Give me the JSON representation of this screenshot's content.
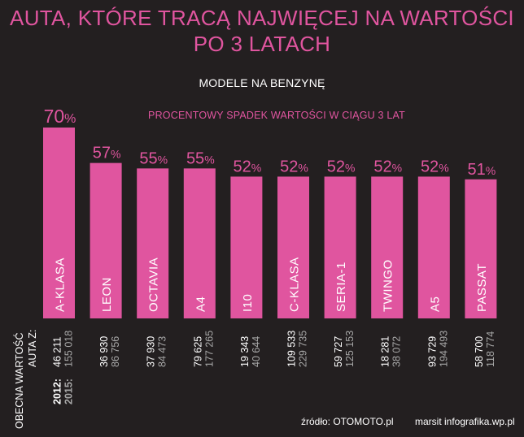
{
  "header": {
    "title_line1": "AUTA, KTÓRE TRACĄ NAJWIĘCEJ NA WARTOŚCI",
    "title_line2": "PO 3 LATACH",
    "subtitle": "MODELE NA BENZYNĘ"
  },
  "chart_data": {
    "type": "bar",
    "title": "PROCENTOWY SPADEK WARTOŚCI W CIĄGU 3 LAT",
    "categories": [
      "A-KLASA",
      "LEON",
      "OCTAVIA",
      "A4",
      "I10",
      "C-KLASA",
      "SERIA-1",
      "TWINGO",
      "A5",
      "PASSAT"
    ],
    "values": [
      70,
      57,
      55,
      55,
      52,
      52,
      52,
      52,
      52,
      51
    ],
    "value_suffix": "%",
    "ylim": [
      0,
      70
    ],
    "grid": false,
    "bar_color": "#e0559f",
    "value_2012": [
      "46 211",
      "36 930",
      "37 930",
      "79 625",
      "19 343",
      "109 533",
      "59 727",
      "18 281",
      "93 729",
      "58 700"
    ],
    "value_2015": [
      "155 018",
      "86 756",
      "84 473",
      "177 265",
      "40 644",
      "229 735",
      "125 153",
      "38 072",
      "194 493",
      "118 774"
    ],
    "axis_label_line1": "OBECNA WARTOŚĆ",
    "axis_label_line2": "AUTA Z:",
    "year_2012_label": "2012:",
    "year_2015_label": "2015:"
  },
  "footer": {
    "source": "źródło: OTOMOTO.pl",
    "author": "marsit infografika.wp.pl"
  },
  "colors": {
    "background": "#231f20",
    "accent": "#e0559f",
    "text": "#ffffff",
    "muted": "#a7a7a7"
  }
}
